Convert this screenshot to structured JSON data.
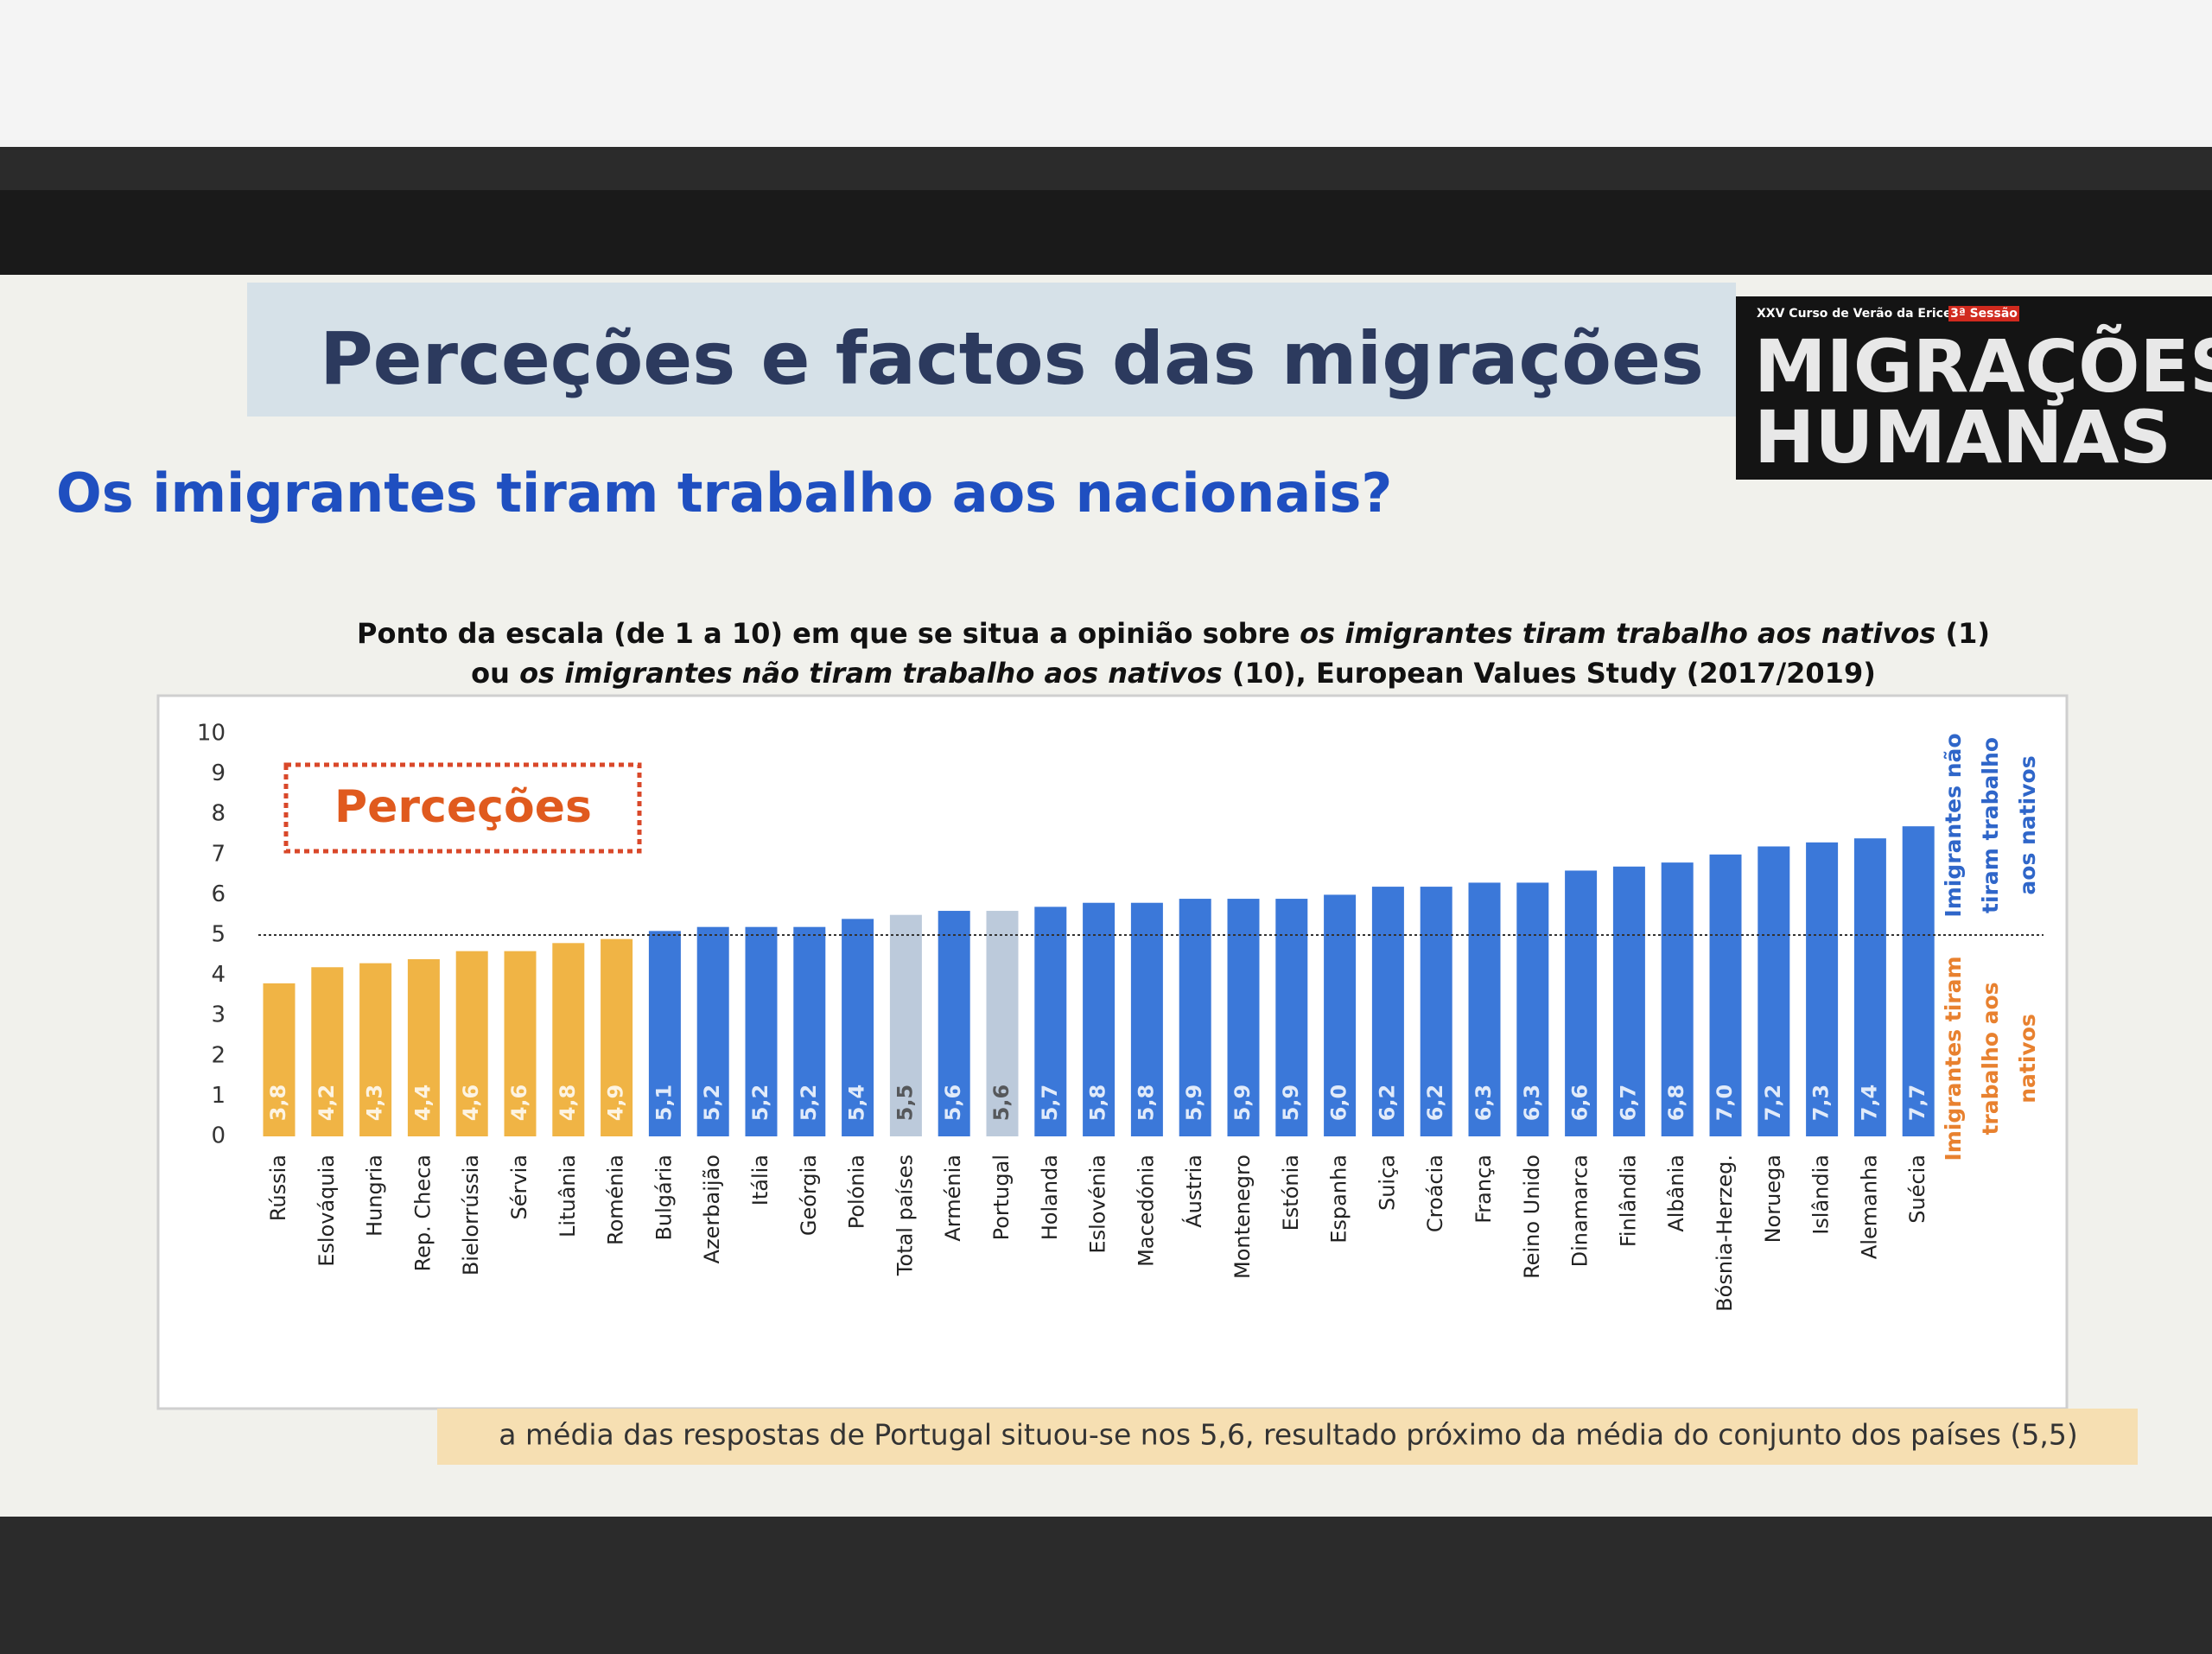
{
  "slide": {
    "title": "Perceções e factos das migrações",
    "subtitle": "Os imigrantes tiram trabalho aos nacionais?",
    "logo": {
      "course": "XXV Curso de Verão da Ericeira",
      "session": "3ª Sessão",
      "line1": "MIGRAÇÕES",
      "line2": "HUMANAS"
    },
    "note": "a média das respostas de Portugal situou-se nos 5,6, resultado próximo da média do conjunto dos países (5,5)"
  },
  "chart_data": {
    "type": "bar",
    "title": [
      [
        {
          "text": "Ponto da escala (de 1 a 10) em que se situa a opinião sobre ",
          "italic": false
        },
        {
          "text": "os imigrantes tiram trabalho aos nativos",
          "italic": true
        },
        {
          "text": " (1)",
          "italic": false
        }
      ],
      [
        {
          "text": "ou ",
          "italic": false
        },
        {
          "text": "os imigrantes não tiram trabalho aos nativos",
          "italic": true
        },
        {
          "text": " (10), European Values Study (2017/2019)",
          "italic": false
        }
      ]
    ],
    "categories": [
      "Rússia",
      "Eslováquia",
      "Hungria",
      "Rep. Checa",
      "Bielorrússia",
      "Sérvia",
      "Lituânia",
      "Roménia",
      "Bulgária",
      "Azerbaijão",
      "Itália",
      "Geórgia",
      "Polónia",
      "Total países",
      "Arménia",
      "Portugal",
      "Holanda",
      "Eslovénia",
      "Macedónia",
      "Áustria",
      "Montenegro",
      "Estónia",
      "Espanha",
      "Suiça",
      "Croácia",
      "França",
      "Reino Unido",
      "Dinamarca",
      "Finlândia",
      "Albânia",
      "Bósnia-Herzeg.",
      "Noruega",
      "Islândia",
      "Alemanha",
      "Suécia"
    ],
    "values": [
      3.8,
      4.2,
      4.3,
      4.4,
      4.6,
      4.6,
      4.8,
      4.9,
      5.1,
      5.2,
      5.2,
      5.2,
      5.4,
      5.5,
      5.6,
      5.6,
      5.7,
      5.8,
      5.8,
      5.9,
      5.9,
      5.9,
      6.0,
      6.2,
      6.2,
      6.3,
      6.3,
      6.6,
      6.7,
      6.8,
      7.0,
      7.2,
      7.3,
      7.4,
      7.7
    ],
    "value_labels": [
      "3,8",
      "4,2",
      "4,3",
      "4,4",
      "4,6",
      "4,6",
      "4,8",
      "4,9",
      "5,1",
      "5,2",
      "5,2",
      "5,2",
      "5,4",
      "5,5",
      "5,6",
      "5,6",
      "5,7",
      "5,8",
      "5,8",
      "5,9",
      "5,9",
      "5,9",
      "6,0",
      "6,2",
      "6,2",
      "6,3",
      "6,3",
      "6,6",
      "6,7",
      "6,8",
      "7,0",
      "7,2",
      "7,3",
      "7,4",
      "7,7"
    ],
    "colors": [
      "#f0b445",
      "#f0b445",
      "#f0b445",
      "#f0b445",
      "#f0b445",
      "#f0b445",
      "#f0b445",
      "#f0b445",
      "#3b78d9",
      "#3b78d9",
      "#3b78d9",
      "#3b78d9",
      "#3b78d9",
      "#bccadb",
      "#3b78d9",
      "#bccadb",
      "#3b78d9",
      "#3b78d9",
      "#3b78d9",
      "#3b78d9",
      "#3b78d9",
      "#3b78d9",
      "#3b78d9",
      "#3b78d9",
      "#3b78d9",
      "#3b78d9",
      "#3b78d9",
      "#3b78d9",
      "#3b78d9",
      "#3b78d9",
      "#3b78d9",
      "#3b78d9",
      "#3b78d9",
      "#3b78d9",
      "#3b78d9"
    ],
    "ylim": [
      0,
      10
    ],
    "yticks": [
      0,
      1,
      2,
      3,
      4,
      5,
      6,
      7,
      8,
      9,
      10
    ],
    "reference_line": 5,
    "box_label": "Perceções",
    "upper_label": [
      "Imigrantes não",
      "tiram trabalho",
      "aos nativos"
    ],
    "lower_label": [
      "Imigrantes tiram",
      "trabalho aos",
      "nativos"
    ]
  }
}
